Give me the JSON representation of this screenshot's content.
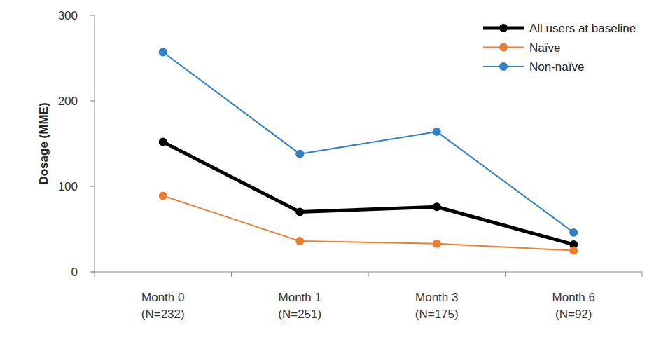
{
  "chart_data": {
    "type": "line",
    "y_label": "Dosage (MME)",
    "categories": [
      "Month 0\n(N=232)",
      "Month 1\n(N=251)",
      "Month 3\n(N=175)",
      "Month 6\n(N=92)"
    ],
    "series": [
      {
        "name": "All users at baseline",
        "color": "#000000",
        "marker": "circle",
        "values": [
          152,
          70,
          76,
          32
        ]
      },
      {
        "name": "Naïve",
        "color": "#ed7d31",
        "marker": "circle",
        "values": [
          89,
          36,
          33,
          25
        ]
      },
      {
        "name": "Non-naïve",
        "color": "#2f80c8",
        "marker": "circle",
        "values": [
          257,
          138,
          164,
          46
        ]
      }
    ],
    "ylim": [
      0,
      300
    ],
    "yticks": [
      0,
      100,
      200,
      300
    ],
    "grid": false,
    "legend": "top-right"
  }
}
